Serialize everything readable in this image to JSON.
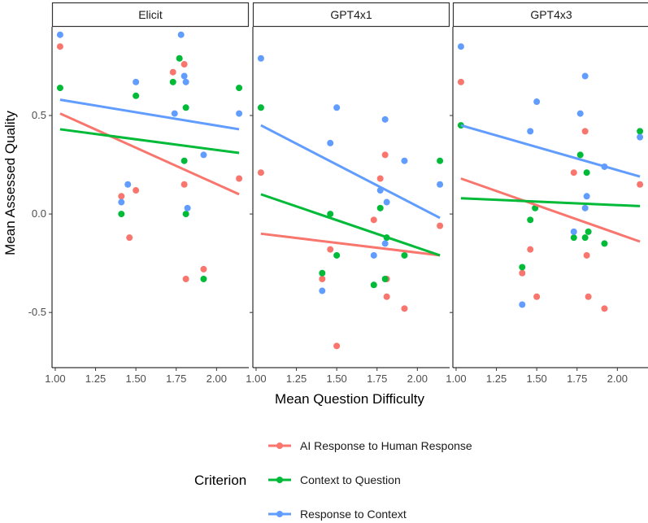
{
  "chart_data": {
    "type": "scatter",
    "xlabel": "Mean Question Difficulty",
    "ylabel": "Mean Assessed Quality",
    "xlim": [
      0.98,
      2.2
    ],
    "ylim": [
      -0.78,
      0.95
    ],
    "x_ticks": [
      "1.00",
      "1.25",
      "1.50",
      "1.75",
      "2.00"
    ],
    "x_tick_values": [
      1.0,
      1.25,
      1.5,
      1.75,
      2.0
    ],
    "y_ticks": [
      "0.5",
      "0.0",
      "-0.5"
    ],
    "y_tick_values": [
      0.5,
      0.0,
      -0.5
    ],
    "grid": false,
    "legend": {
      "title": "Criterion",
      "placement": "bottom",
      "entries": [
        {
          "label": "AI Response to Human Response",
          "color": "#F8766D"
        },
        {
          "label": "Context to Question",
          "color": "#00BA38"
        },
        {
          "label": "Response to Context",
          "color": "#619CFF"
        }
      ]
    },
    "panels": [
      {
        "title": "Elicit",
        "series": [
          {
            "name": "AI Response to Human Response",
            "color": "#F8766D",
            "points": [
              [
                1.03,
                0.85
              ],
              [
                1.41,
                0.09
              ],
              [
                1.46,
                -0.12
              ],
              [
                1.5,
                0.12
              ],
              [
                1.73,
                0.72
              ],
              [
                1.8,
                0.76
              ],
              [
                1.8,
                0.15
              ],
              [
                1.81,
                -0.33
              ],
              [
                1.92,
                -0.28
              ],
              [
                2.14,
                0.18
              ]
            ],
            "fit": [
              [
                1.03,
                0.51
              ],
              [
                2.14,
                0.1
              ]
            ]
          },
          {
            "name": "Context to Question",
            "color": "#00BA38",
            "points": [
              [
                1.03,
                0.64
              ],
              [
                1.41,
                0.0
              ],
              [
                1.5,
                0.6
              ],
              [
                1.73,
                0.67
              ],
              [
                1.77,
                0.79
              ],
              [
                1.8,
                0.27
              ],
              [
                1.81,
                0.54
              ],
              [
                1.81,
                0.0
              ],
              [
                1.92,
                -0.33
              ],
              [
                2.14,
                0.64
              ]
            ],
            "fit": [
              [
                1.03,
                0.43
              ],
              [
                2.14,
                0.31
              ]
            ]
          },
          {
            "name": "Response to Context",
            "color": "#619CFF",
            "points": [
              [
                1.03,
                0.91
              ],
              [
                1.41,
                0.06
              ],
              [
                1.45,
                0.15
              ],
              [
                1.5,
                0.67
              ],
              [
                1.74,
                0.51
              ],
              [
                1.78,
                0.91
              ],
              [
                1.8,
                0.7
              ],
              [
                1.81,
                0.67
              ],
              [
                1.82,
                0.03
              ],
              [
                1.92,
                0.3
              ],
              [
                2.14,
                0.51
              ]
            ],
            "fit": [
              [
                1.03,
                0.58
              ],
              [
                2.14,
                0.43
              ]
            ]
          }
        ]
      },
      {
        "title": "GPT4x1",
        "series": [
          {
            "name": "AI Response to Human Response",
            "color": "#F8766D",
            "points": [
              [
                1.03,
                0.21
              ],
              [
                1.41,
                -0.33
              ],
              [
                1.46,
                -0.18
              ],
              [
                1.5,
                -0.67
              ],
              [
                1.73,
                -0.03
              ],
              [
                1.77,
                0.18
              ],
              [
                1.8,
                0.3
              ],
              [
                1.81,
                -0.42
              ],
              [
                1.81,
                -0.33
              ],
              [
                1.92,
                -0.48
              ],
              [
                2.14,
                -0.06
              ]
            ],
            "fit": [
              [
                1.03,
                -0.1
              ],
              [
                2.14,
                -0.21
              ]
            ]
          },
          {
            "name": "Context to Question",
            "color": "#00BA38",
            "points": [
              [
                1.03,
                0.54
              ],
              [
                1.41,
                -0.3
              ],
              [
                1.46,
                0.0
              ],
              [
                1.5,
                -0.21
              ],
              [
                1.73,
                -0.36
              ],
              [
                1.77,
                0.03
              ],
              [
                1.8,
                -0.33
              ],
              [
                1.81,
                -0.12
              ],
              [
                1.92,
                -0.21
              ],
              [
                2.14,
                0.27
              ]
            ],
            "fit": [
              [
                1.03,
                0.1
              ],
              [
                2.14,
                -0.21
              ]
            ]
          },
          {
            "name": "Response to Context",
            "color": "#619CFF",
            "points": [
              [
                1.03,
                0.79
              ],
              [
                1.41,
                -0.39
              ],
              [
                1.46,
                0.36
              ],
              [
                1.5,
                0.54
              ],
              [
                1.73,
                -0.21
              ],
              [
                1.77,
                0.12
              ],
              [
                1.8,
                0.48
              ],
              [
                1.81,
                0.06
              ],
              [
                1.8,
                -0.15
              ],
              [
                1.92,
                0.27
              ],
              [
                2.14,
                0.15
              ]
            ],
            "fit": [
              [
                1.03,
                0.45
              ],
              [
                2.14,
                -0.02
              ]
            ]
          }
        ]
      },
      {
        "title": "GPT4x3",
        "series": [
          {
            "name": "AI Response to Human Response",
            "color": "#F8766D",
            "points": [
              [
                1.03,
                0.67
              ],
              [
                1.41,
                -0.3
              ],
              [
                1.46,
                -0.18
              ],
              [
                1.5,
                -0.42
              ],
              [
                1.73,
                0.21
              ],
              [
                1.8,
                0.42
              ],
              [
                1.81,
                -0.21
              ],
              [
                1.82,
                -0.42
              ],
              [
                1.92,
                -0.48
              ],
              [
                2.14,
                0.15
              ]
            ],
            "fit": [
              [
                1.03,
                0.18
              ],
              [
                2.14,
                -0.14
              ]
            ]
          },
          {
            "name": "Context to Question",
            "color": "#00BA38",
            "points": [
              [
                1.03,
                0.45
              ],
              [
                1.41,
                -0.27
              ],
              [
                1.46,
                -0.03
              ],
              [
                1.49,
                0.03
              ],
              [
                1.73,
                -0.12
              ],
              [
                1.77,
                0.3
              ],
              [
                1.8,
                -0.12
              ],
              [
                1.81,
                0.21
              ],
              [
                1.82,
                -0.09
              ],
              [
                1.92,
                -0.15
              ],
              [
                2.14,
                0.42
              ]
            ],
            "fit": [
              [
                1.03,
                0.08
              ],
              [
                2.14,
                0.04
              ]
            ]
          },
          {
            "name": "Response to Context",
            "color": "#619CFF",
            "points": [
              [
                1.03,
                0.85
              ],
              [
                1.41,
                -0.46
              ],
              [
                1.46,
                0.42
              ],
              [
                1.5,
                0.57
              ],
              [
                1.73,
                -0.09
              ],
              [
                1.77,
                0.51
              ],
              [
                1.8,
                0.7
              ],
              [
                1.81,
                0.09
              ],
              [
                1.8,
                0.03
              ],
              [
                1.92,
                0.24
              ],
              [
                2.14,
                0.39
              ]
            ],
            "fit": [
              [
                1.03,
                0.45
              ],
              [
                2.14,
                0.19
              ]
            ]
          }
        ]
      }
    ]
  }
}
